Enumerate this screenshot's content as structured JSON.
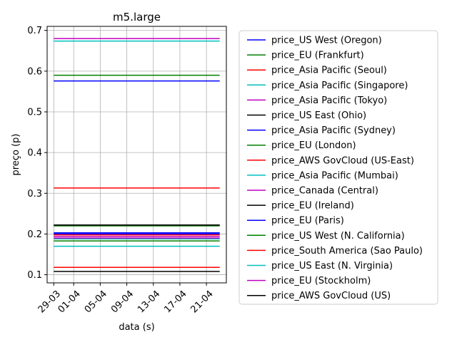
{
  "chart_data": {
    "type": "line",
    "title": "m5.large",
    "xlabel": "data (s)",
    "ylabel": "preço (p)",
    "x_ticks": [
      "29-03",
      "01-04",
      "05-04",
      "09-04",
      "13-04",
      "17-04",
      "21-04"
    ],
    "x_range": [
      "2018-03-28",
      "2018-04-24"
    ],
    "y_ticks": [
      "0.1",
      "0.2",
      "0.3",
      "0.4",
      "0.5",
      "0.6",
      "0.7"
    ],
    "ylim": [
      0.08,
      0.71
    ],
    "grid": true,
    "legend_position": "right",
    "series": [
      {
        "name": "price_US West (Oregon)",
        "color": "#0000ff",
        "x": [
          "2018-03-29",
          "2018-04-23"
        ],
        "y": [
          0.576,
          0.576
        ]
      },
      {
        "name": "price_EU (Frankfurt)",
        "color": "#008000",
        "x": [
          "2018-03-29",
          "2018-04-23"
        ],
        "y": [
          0.59,
          0.59
        ]
      },
      {
        "name": "price_Asia Pacific (Seoul)",
        "color": "#ff0000",
        "x": [
          "2018-03-29",
          "2018-04-23"
        ],
        "y": [
          0.118,
          0.118
        ]
      },
      {
        "name": "price_Asia Pacific (Singapore)",
        "color": "#00bfbf",
        "x": [
          "2018-03-29",
          "2018-04-23"
        ],
        "y": [
          0.674,
          0.674
        ]
      },
      {
        "name": "price_Asia Pacific (Tokyo)",
        "color": "#bf00bf",
        "x": [
          "2018-03-29",
          "2018-04-23"
        ],
        "y": [
          0.68,
          0.68
        ]
      },
      {
        "name": "price_US East (Ohio)",
        "color": "#000000",
        "x": [
          "2018-03-29",
          "2018-04-23"
        ],
        "y": [
          0.108,
          0.108
        ]
      },
      {
        "name": "price_Asia Pacific (Sydney)",
        "color": "#0000ff",
        "x": [
          "2018-03-29",
          "2018-04-23"
        ],
        "y": [
          0.2,
          0.2
        ]
      },
      {
        "name": "price_EU (London)",
        "color": "#008000",
        "x": [
          "2018-03-29",
          "2018-04-23"
        ],
        "y": [
          0.183,
          0.183
        ]
      },
      {
        "name": "price_AWS GovCloud (US-East)",
        "color": "#ff0000",
        "x": [
          "2018-03-29",
          "2018-04-23"
        ],
        "y": [
          0.313,
          0.313
        ]
      },
      {
        "name": "price_Asia Pacific (Mumbai)",
        "color": "#00bfbf",
        "x": [
          "2018-03-29",
          "2018-04-23"
        ],
        "y": [
          0.17,
          0.17
        ]
      },
      {
        "name": "price_Canada (Central)",
        "color": "#bf00bf",
        "x": [
          "2018-03-29",
          "2018-04-23"
        ],
        "y": [
          0.194,
          0.194
        ]
      },
      {
        "name": "price_EU (Ireland)",
        "color": "#000000",
        "x": [
          "2018-03-29",
          "2018-04-23"
        ],
        "y": [
          0.222,
          0.222
        ]
      },
      {
        "name": "price_EU (Paris)",
        "color": "#0000ff",
        "x": [
          "2018-03-29",
          "2018-04-23"
        ],
        "y": [
          0.203,
          0.203
        ]
      },
      {
        "name": "price_US West (N. California)",
        "color": "#008000",
        "x": [
          "2018-03-29",
          "2018-04-23"
        ],
        "y": [
          0.22,
          0.22
        ]
      },
      {
        "name": "price_South America (Sao Paulo)",
        "color": "#ff0000",
        "x": [
          "2018-03-29",
          "2018-04-23"
        ],
        "y": [
          0.198,
          0.198
        ]
      },
      {
        "name": "price_US East (N. Virginia)",
        "color": "#00bfbf",
        "x": [
          "2018-03-29",
          "2018-04-23"
        ],
        "y": [
          0.188,
          0.188
        ]
      },
      {
        "name": "price_EU (Stockholm)",
        "color": "#bf00bf",
        "x": [
          "2018-03-29",
          "2018-04-23"
        ],
        "y": [
          0.19,
          0.19
        ]
      },
      {
        "name": "price_AWS GovCloud (US)",
        "color": "#000000",
        "x": [
          "2018-03-29",
          "2018-04-23"
        ],
        "y": [
          0.222,
          0.222
        ]
      }
    ]
  }
}
